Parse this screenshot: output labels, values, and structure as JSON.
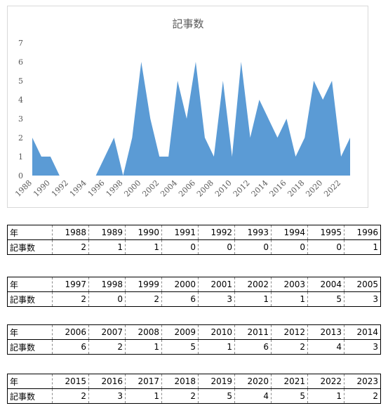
{
  "chart_data": {
    "type": "area",
    "title": "記事数",
    "xlabel": "",
    "ylabel": "",
    "x": [
      1988,
      1989,
      1990,
      1991,
      1992,
      1993,
      1994,
      1995,
      1996,
      1997,
      1998,
      1999,
      2000,
      2001,
      2002,
      2003,
      2004,
      2005,
      2006,
      2007,
      2008,
      2009,
      2010,
      2011,
      2012,
      2013,
      2014,
      2015,
      2016,
      2017,
      2018,
      2019,
      2020,
      2021,
      2022,
      2023
    ],
    "values": [
      2,
      1,
      1,
      0,
      0,
      0,
      0,
      0,
      1,
      2,
      0,
      2,
      6,
      3,
      1,
      1,
      5,
      3,
      6,
      2,
      1,
      5,
      1,
      6,
      2,
      4,
      3,
      2,
      3,
      1,
      2,
      5,
      4,
      5,
      1,
      2
    ],
    "x_tick_labels": [
      "1988",
      "1990",
      "1992",
      "1994",
      "1996",
      "1998",
      "2000",
      "2002",
      "2004",
      "2006",
      "2008",
      "2010",
      "2012",
      "2014",
      "2016",
      "2018",
      "2020",
      "2022"
    ],
    "y_ticks": [
      "0",
      "1",
      "2",
      "3",
      "4",
      "5",
      "6",
      "7"
    ],
    "ylim": [
      0,
      7
    ],
    "grid": false,
    "legend": "none",
    "color": "#5b9bd5"
  },
  "table": {
    "row1_label": "年",
    "row2_label": "記事数",
    "blocks": [
      {
        "years": [
          "1988",
          "1989",
          "1990",
          "1991",
          "1992",
          "1993",
          "1994",
          "1995",
          "1996"
        ],
        "counts": [
          "2",
          "1",
          "1",
          "0",
          "0",
          "0",
          "0",
          "0",
          "1"
        ]
      },
      {
        "years": [
          "1997",
          "1998",
          "1999",
          "2000",
          "2001",
          "2002",
          "2003",
          "2004",
          "2005"
        ],
        "counts": [
          "2",
          "0",
          "2",
          "6",
          "3",
          "1",
          "1",
          "5",
          "3"
        ]
      },
      {
        "years": [
          "2006",
          "2007",
          "2008",
          "2009",
          "2010",
          "2011",
          "2012",
          "2013",
          "2014"
        ],
        "counts": [
          "6",
          "2",
          "1",
          "5",
          "1",
          "6",
          "2",
          "4",
          "3"
        ]
      },
      {
        "years": [
          "2015",
          "2016",
          "2017",
          "2018",
          "2019",
          "2020",
          "2021",
          "2022",
          "2023"
        ],
        "counts": [
          "2",
          "3",
          "1",
          "2",
          "5",
          "4",
          "5",
          "1",
          "2"
        ]
      }
    ]
  }
}
